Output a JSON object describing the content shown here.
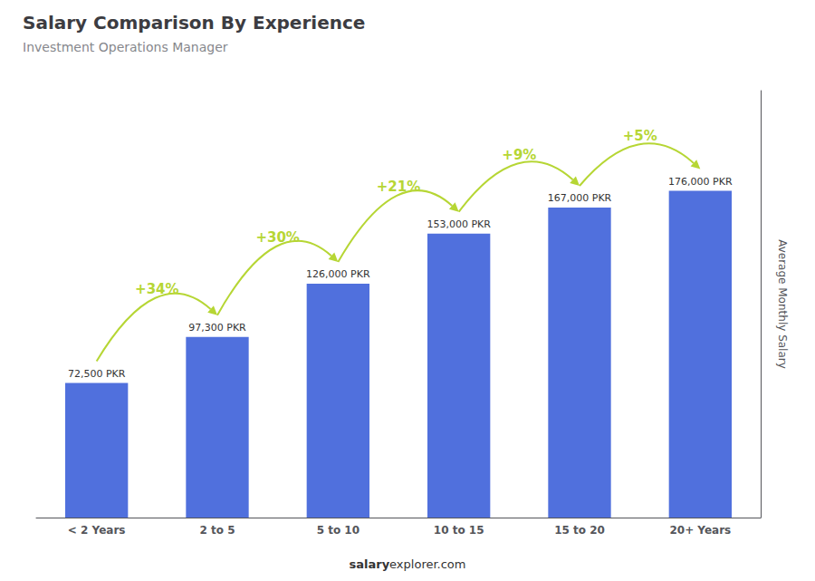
{
  "chart_data": {
    "type": "bar",
    "title": "Salary Comparison By Experience",
    "subtitle": "Investment Operations Manager",
    "ylabel": "Average Monthly Salary",
    "categories": [
      "< 2 Years",
      "2 to 5",
      "5 to 10",
      "10 to 15",
      "15 to 20",
      "20+ Years"
    ],
    "values": [
      72500,
      97300,
      126000,
      153000,
      167000,
      176000
    ],
    "value_labels": [
      "72,500 PKR",
      "97,300 PKR",
      "126,000 PKR",
      "153,000 PKR",
      "167,000 PKR",
      "176,000 PKR"
    ],
    "data_labels": true,
    "ylim": [
      0,
      230000
    ],
    "tick_labels": "x",
    "grid": false,
    "annotations": [
      {
        "text": "+34%",
        "from": "< 2 Years",
        "to": "2 to 5"
      },
      {
        "text": "+30%",
        "from": "2 to 5",
        "to": "5 to 10"
      },
      {
        "text": "+21%",
        "from": "5 to 10",
        "to": "10 to 15"
      },
      {
        "text": "+9%",
        "from": "10 to 15",
        "to": "15 to 20"
      },
      {
        "text": "+5%",
        "from": "15 to 20",
        "to": "20+ Years"
      }
    ],
    "footer": [
      "salary",
      "explorer.com"
    ]
  }
}
